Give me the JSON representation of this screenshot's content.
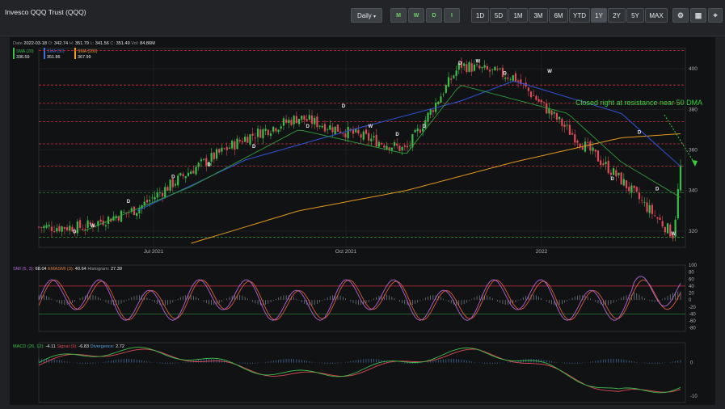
{
  "header": {
    "title": "Invesco QQQ Trust (QQQ)",
    "interval": "Daily",
    "chart_type_buttons": [
      "M",
      "W",
      "D",
      "I"
    ],
    "range_buttons": [
      "1D",
      "5D",
      "1M",
      "3M",
      "6M",
      "YTD",
      "1Y",
      "2Y",
      "5Y",
      "MAX"
    ],
    "active_range": "1Y",
    "tool_icons": [
      "settings-icon",
      "calculator-icon",
      "share-icon"
    ]
  },
  "ohlc": {
    "date_label": "Date",
    "date": "2022-03-18",
    "o_label": "O:",
    "o": "342.74",
    "h_label": "H:",
    "h": "351.79",
    "l_label": "L:",
    "l": "341.56",
    "c_label": "C:",
    "c": "351.49",
    "vol_label": "Vol:",
    "vol": "84.86M"
  },
  "sma_legend": [
    {
      "label": "SMA (20)",
      "value": "336.59",
      "color": "#3bbf4a"
    },
    {
      "label": "SMA (50)",
      "value": "351.86",
      "color": "#3a6de0"
    },
    {
      "label": "SMA (200)",
      "value": "367.99",
      "color": "#f0a321"
    }
  ],
  "annotation": "Closed right at resistance near 50 DMA",
  "colors": {
    "up": "#3bbf4a",
    "down": "#e04a57",
    "sma20": "#2f9e3a",
    "sma50": "#2d4fc9",
    "sma200": "#e39a1e",
    "resistance": "#c8323c",
    "annotation": "#36d13a"
  },
  "chart_data": [
    {
      "type": "candlestick",
      "title": "Invesco QQQ Trust (QQQ)",
      "x_tick_labels": [
        "Jul 2021",
        "Oct 2021",
        "2022"
      ],
      "y_tick_labels": [
        "320",
        "340",
        "360",
        "380",
        "400"
      ],
      "ylim": [
        312,
        410
      ],
      "close_series_approx": [
        {
          "date": "2021-04",
          "close": 322
        },
        {
          "date": "2021-05",
          "close": 331
        },
        {
          "date": "2021-06",
          "close": 350
        },
        {
          "date": "2021-07",
          "close": 366
        },
        {
          "date": "2021-08",
          "close": 376
        },
        {
          "date": "2021-09",
          "close": 368
        },
        {
          "date": "2021-10",
          "close": 360
        },
        {
          "date": "2021-11",
          "close": 402
        },
        {
          "date": "2021-12",
          "close": 396
        },
        {
          "date": "2022-01",
          "close": 370
        },
        {
          "date": "2022-02",
          "close": 345
        },
        {
          "date": "2022-03-14",
          "close": 318
        },
        {
          "date": "2022-03-18",
          "close": 351.49
        }
      ],
      "sma_20_approx": [
        {
          "date": "2021-04",
          "value": 320
        },
        {
          "date": "2021-06",
          "value": 342
        },
        {
          "date": "2021-08",
          "value": 370
        },
        {
          "date": "2021-10",
          "value": 358
        },
        {
          "date": "2021-11",
          "value": 392
        },
        {
          "date": "2022-01",
          "value": 378
        },
        {
          "date": "2022-02",
          "value": 354
        },
        {
          "date": "2022-03-18",
          "value": 336.59
        }
      ],
      "sma_50_approx": [
        {
          "date": "2021-05",
          "value": 330
        },
        {
          "date": "2021-07",
          "value": 355
        },
        {
          "date": "2021-09",
          "value": 370
        },
        {
          "date": "2021-11",
          "value": 384
        },
        {
          "date": "2021-12",
          "value": 394
        },
        {
          "date": "2022-02",
          "value": 378
        },
        {
          "date": "2022-03-18",
          "value": 351.86
        }
      ],
      "sma_200_approx": [
        {
          "date": "2021-06",
          "value": 314
        },
        {
          "date": "2021-08",
          "value": 330
        },
        {
          "date": "2021-10",
          "value": 340
        },
        {
          "date": "2021-12",
          "value": 354
        },
        {
          "date": "2022-02",
          "value": 366
        },
        {
          "date": "2022-03-18",
          "value": 367.99
        }
      ],
      "resistance_levels": [
        409,
        392,
        383,
        374,
        363,
        352
      ],
      "support_levels": [
        339,
        317
      ],
      "marker_labels": [
        "D",
        "W"
      ]
    },
    {
      "type": "line",
      "title": "SMI (5, 3): 68.04  EMASMI (3): 40.64  Histogram: 27.39",
      "legend": [
        {
          "label": "SMI (5, 3):",
          "value": "68.04",
          "color": "#b266d9"
        },
        {
          "label": "EMASMI (3):",
          "value": "40.64",
          "color": "#e0803a"
        },
        {
          "label": "Histogram:",
          "value": "27.39",
          "color": "#9aa0a6"
        }
      ],
      "y_tick_labels": [
        "100",
        "80",
        "60",
        "40",
        "20",
        "0",
        "-20",
        "-40",
        "-60",
        "-80"
      ],
      "ylim": [
        -90,
        100
      ],
      "overbought": 40,
      "oversold": -40
    },
    {
      "type": "line",
      "title": "MACD (26, 12): -4.11  Signal (9): -6.83  Divergence: 2.72",
      "legend": [
        {
          "label": "MACD (26, 12):",
          "value": "-4.11",
          "color": "#3bbf4a"
        },
        {
          "label": "Signal (9):",
          "value": "-6.83",
          "color": "#e04a57"
        },
        {
          "label": "Divergence:",
          "value": "2.72",
          "color": "#5aa0e0"
        }
      ],
      "y_tick_labels": [
        "0",
        "-10"
      ],
      "ylim": [
        -12,
        6
      ]
    }
  ]
}
